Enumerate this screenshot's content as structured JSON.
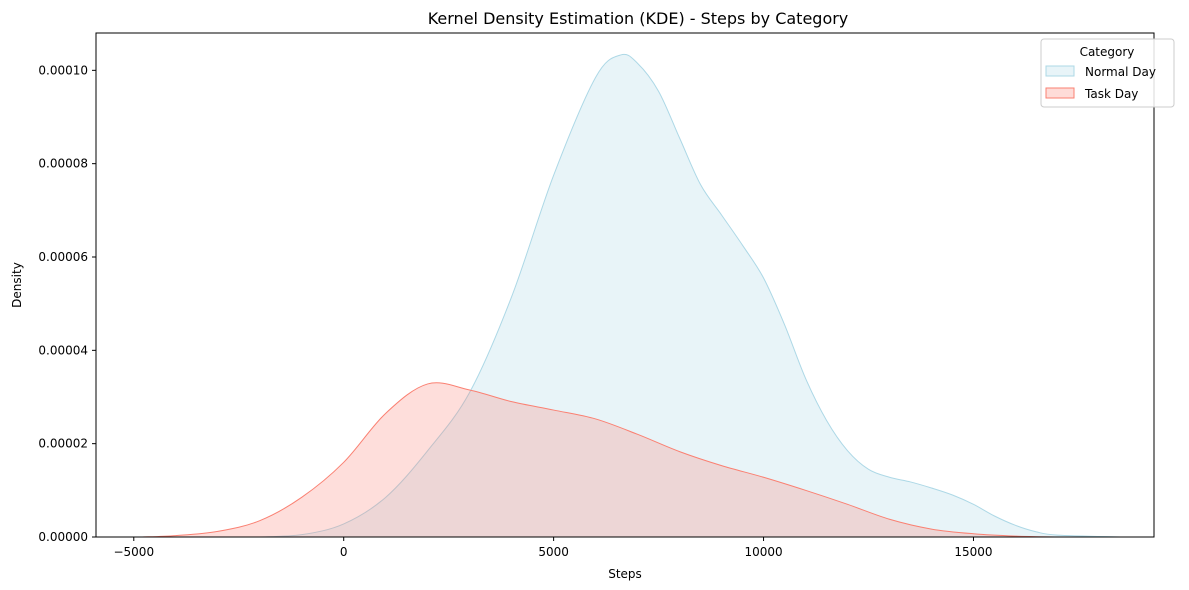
{
  "chart_data": {
    "type": "area",
    "title": "Kernel Density Estimation (KDE) - Steps by Category",
    "xlabel": "Steps",
    "ylabel": "Density",
    "xlim": [
      -5900,
      19300
    ],
    "ylim": [
      0,
      0.000108
    ],
    "x_ticks": [
      -5000,
      0,
      5000,
      10000,
      15000
    ],
    "x_tick_labels": [
      "−5000",
      "0",
      "5000",
      "10000",
      "15000"
    ],
    "y_ticks": [
      0,
      2e-05,
      4e-05,
      6e-05,
      8e-05,
      0.0001
    ],
    "y_tick_labels": [
      "0.00000",
      "0.00002",
      "0.00004",
      "0.00006",
      "0.00008",
      "0.00010"
    ],
    "grid": false,
    "legend": {
      "title": "Category",
      "placement": "top-right"
    },
    "series": [
      {
        "name": "Normal Day",
        "color": "#add8e6",
        "points": [
          [
            -2000,
            0.0
          ],
          [
            -1000,
            5e-07
          ],
          [
            0,
            2.8e-06
          ],
          [
            1000,
            8.5e-06
          ],
          [
            2000,
            1.85e-05
          ],
          [
            3000,
            3.1e-05
          ],
          [
            4000,
            5.15e-05
          ],
          [
            5000,
            7.75e-05
          ],
          [
            6000,
            9.85e-05
          ],
          [
            6600,
            0.0001033
          ],
          [
            7000,
            0.0001015
          ],
          [
            7500,
            9.55e-05
          ],
          [
            8000,
            8.55e-05
          ],
          [
            8500,
            7.55e-05
          ],
          [
            9000,
            6.9e-05
          ],
          [
            9500,
            6.25e-05
          ],
          [
            10000,
            5.55e-05
          ],
          [
            10500,
            4.55e-05
          ],
          [
            11000,
            3.4e-05
          ],
          [
            11500,
            2.5e-05
          ],
          [
            12000,
            1.85e-05
          ],
          [
            12500,
            1.45e-05
          ],
          [
            13000,
            1.28e-05
          ],
          [
            13500,
            1.18e-05
          ],
          [
            14000,
            1.05e-05
          ],
          [
            14500,
            9e-06
          ],
          [
            15000,
            7e-06
          ],
          [
            15500,
            4.5e-06
          ],
          [
            16000,
            2.5e-06
          ],
          [
            16500,
            1.1e-06
          ],
          [
            17000,
            4e-07
          ],
          [
            18500,
            0.0
          ]
        ]
      },
      {
        "name": "Task Day",
        "color": "#fa8072",
        "points": [
          [
            -4800,
            0.0
          ],
          [
            -4000,
            3e-07
          ],
          [
            -3000,
            1.2e-06
          ],
          [
            -2000,
            3.5e-06
          ],
          [
            -1000,
            8.5e-06
          ],
          [
            0,
            1.6e-05
          ],
          [
            1000,
            2.65e-05
          ],
          [
            2000,
            3.28e-05
          ],
          [
            3000,
            3.15e-05
          ],
          [
            4000,
            2.9e-05
          ],
          [
            5000,
            2.72e-05
          ],
          [
            6000,
            2.53e-05
          ],
          [
            7000,
            2.2e-05
          ],
          [
            8000,
            1.83e-05
          ],
          [
            9000,
            1.53e-05
          ],
          [
            10000,
            1.28e-05
          ],
          [
            11000,
            1e-05
          ],
          [
            12000,
            7e-06
          ],
          [
            13000,
            3.8e-06
          ],
          [
            14000,
            1.7e-06
          ],
          [
            15000,
            7e-07
          ],
          [
            16000,
            2e-07
          ],
          [
            17000,
            0.0
          ]
        ]
      }
    ]
  }
}
